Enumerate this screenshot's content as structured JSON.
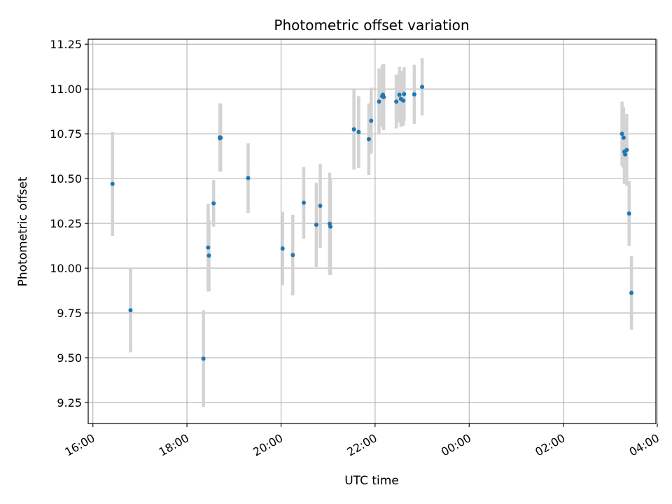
{
  "chart_data": {
    "type": "scatter",
    "title": "Photometric offset variation",
    "xlabel": "UTC time",
    "ylabel": "Photometric offset",
    "x_axis": {
      "kind": "time",
      "range_hours": [
        15.9,
        27.97
      ],
      "ticks": [
        {
          "hour": 16,
          "label": "16:00"
        },
        {
          "hour": 18,
          "label": "18:00"
        },
        {
          "hour": 20,
          "label": "20:00"
        },
        {
          "hour": 22,
          "label": "22:00"
        },
        {
          "hour": 24,
          "label": "00:00"
        },
        {
          "hour": 26,
          "label": "02:00"
        },
        {
          "hour": 28,
          "label": "04:00"
        }
      ]
    },
    "y_axis": {
      "range": [
        9.133,
        11.278
      ],
      "ticks": [
        9.25,
        9.5,
        9.75,
        10.0,
        10.25,
        10.5,
        10.75,
        11.0,
        11.25
      ],
      "tick_labels": [
        "9.25",
        "9.50",
        "9.75",
        "10.00",
        "10.25",
        "10.50",
        "10.75",
        "11.00",
        "11.25"
      ]
    },
    "grid": true,
    "point_color": "#1f77b4",
    "errorbar_color": "#d3d3d3",
    "points": [
      {
        "time": "16:25",
        "value": 10.47,
        "error": 0.29
      },
      {
        "time": "16:48",
        "value": 9.765,
        "error": 0.235
      },
      {
        "time": "18:21",
        "value": 9.495,
        "error": 0.27
      },
      {
        "time": "18:27",
        "value": 10.115,
        "error": 0.245
      },
      {
        "time": "18:28",
        "value": 10.07,
        "error": 0.2
      },
      {
        "time": "18:34",
        "value": 10.362,
        "error": 0.13
      },
      {
        "time": "18:42",
        "value": 10.73,
        "error": 0.19
      },
      {
        "time": "18:42",
        "value": 10.725,
        "error": 0.17
      },
      {
        "time": "18:43",
        "value": 10.728,
        "error": 0.19
      },
      {
        "time": "19:18",
        "value": 10.503,
        "error": 0.195
      },
      {
        "time": "20:02",
        "value": 10.11,
        "error": 0.205
      },
      {
        "time": "20:15",
        "value": 10.073,
        "error": 0.225
      },
      {
        "time": "20:29",
        "value": 10.365,
        "error": 0.2
      },
      {
        "time": "20:45",
        "value": 10.242,
        "error": 0.235
      },
      {
        "time": "20:50",
        "value": 10.348,
        "error": 0.235
      },
      {
        "time": "21:02",
        "value": 10.248,
        "error": 0.285
      },
      {
        "time": "21:03",
        "value": 10.232,
        "error": 0.27
      },
      {
        "time": "21:33",
        "value": 10.775,
        "error": 0.225
      },
      {
        "time": "21:39",
        "value": 10.76,
        "error": 0.2
      },
      {
        "time": "21:52",
        "value": 10.72,
        "error": 0.2
      },
      {
        "time": "21:55",
        "value": 10.823,
        "error": 0.185
      },
      {
        "time": "22:05",
        "value": 10.93,
        "error": 0.185
      },
      {
        "time": "22:09",
        "value": 10.96,
        "error": 0.17
      },
      {
        "time": "22:10",
        "value": 10.968,
        "error": 0.17
      },
      {
        "time": "22:11",
        "value": 10.955,
        "error": 0.185
      },
      {
        "time": "22:27",
        "value": 10.93,
        "error": 0.15
      },
      {
        "time": "22:31",
        "value": 10.968,
        "error": 0.155
      },
      {
        "time": "22:33",
        "value": 10.945,
        "error": 0.155
      },
      {
        "time": "22:36",
        "value": 10.935,
        "error": 0.14
      },
      {
        "time": "22:37",
        "value": 10.972,
        "error": 0.15
      },
      {
        "time": "22:50",
        "value": 10.97,
        "error": 0.165
      },
      {
        "time": "23:00",
        "value": 11.012,
        "error": 0.16
      },
      {
        "time": "03:15",
        "value": 10.75,
        "error": 0.18
      },
      {
        "time": "03:17",
        "value": 10.728,
        "error": 0.17
      },
      {
        "time": "03:18",
        "value": 10.65,
        "error": 0.18
      },
      {
        "time": "03:19",
        "value": 10.635,
        "error": 0.15
      },
      {
        "time": "03:21",
        "value": 10.66,
        "error": 0.2
      },
      {
        "time": "03:24",
        "value": 10.305,
        "error": 0.18
      },
      {
        "time": "03:27",
        "value": 9.862,
        "error": 0.205
      }
    ]
  }
}
